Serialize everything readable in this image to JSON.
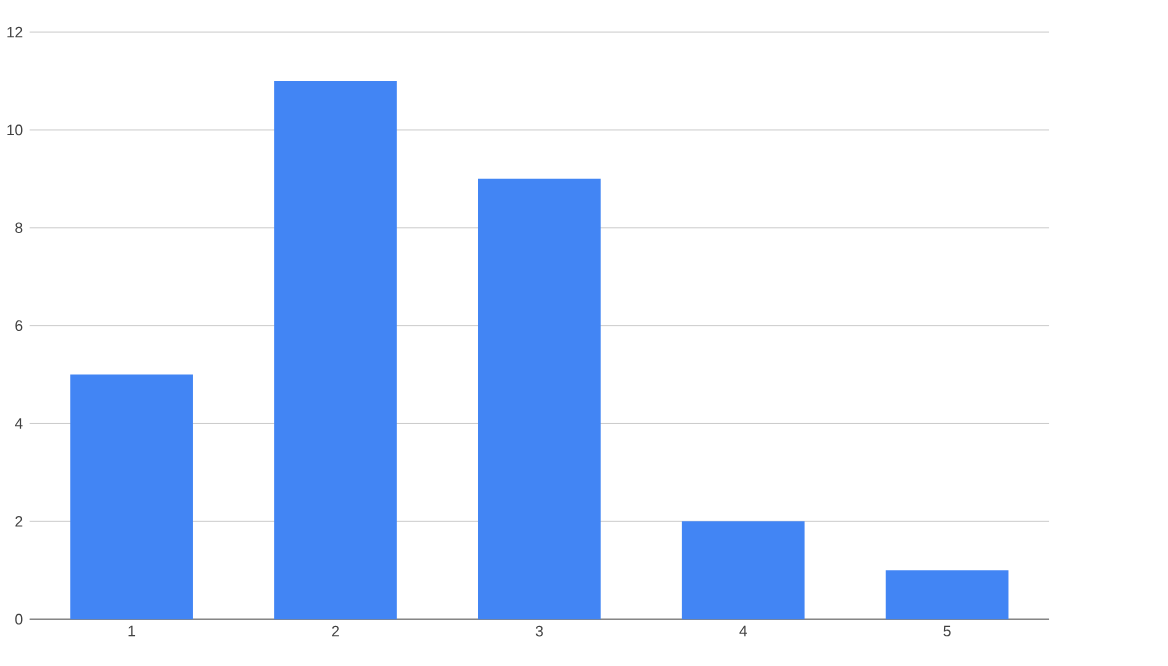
{
  "chart_data": {
    "type": "bar",
    "categories": [
      "1",
      "2",
      "3",
      "4",
      "5"
    ],
    "values": [
      5,
      11,
      9,
      2,
      1
    ],
    "color": "#4285f4",
    "ylim": [
      0,
      12
    ],
    "yticks": [
      0,
      2,
      4,
      6,
      8,
      10,
      12
    ],
    "grid": "y"
  }
}
